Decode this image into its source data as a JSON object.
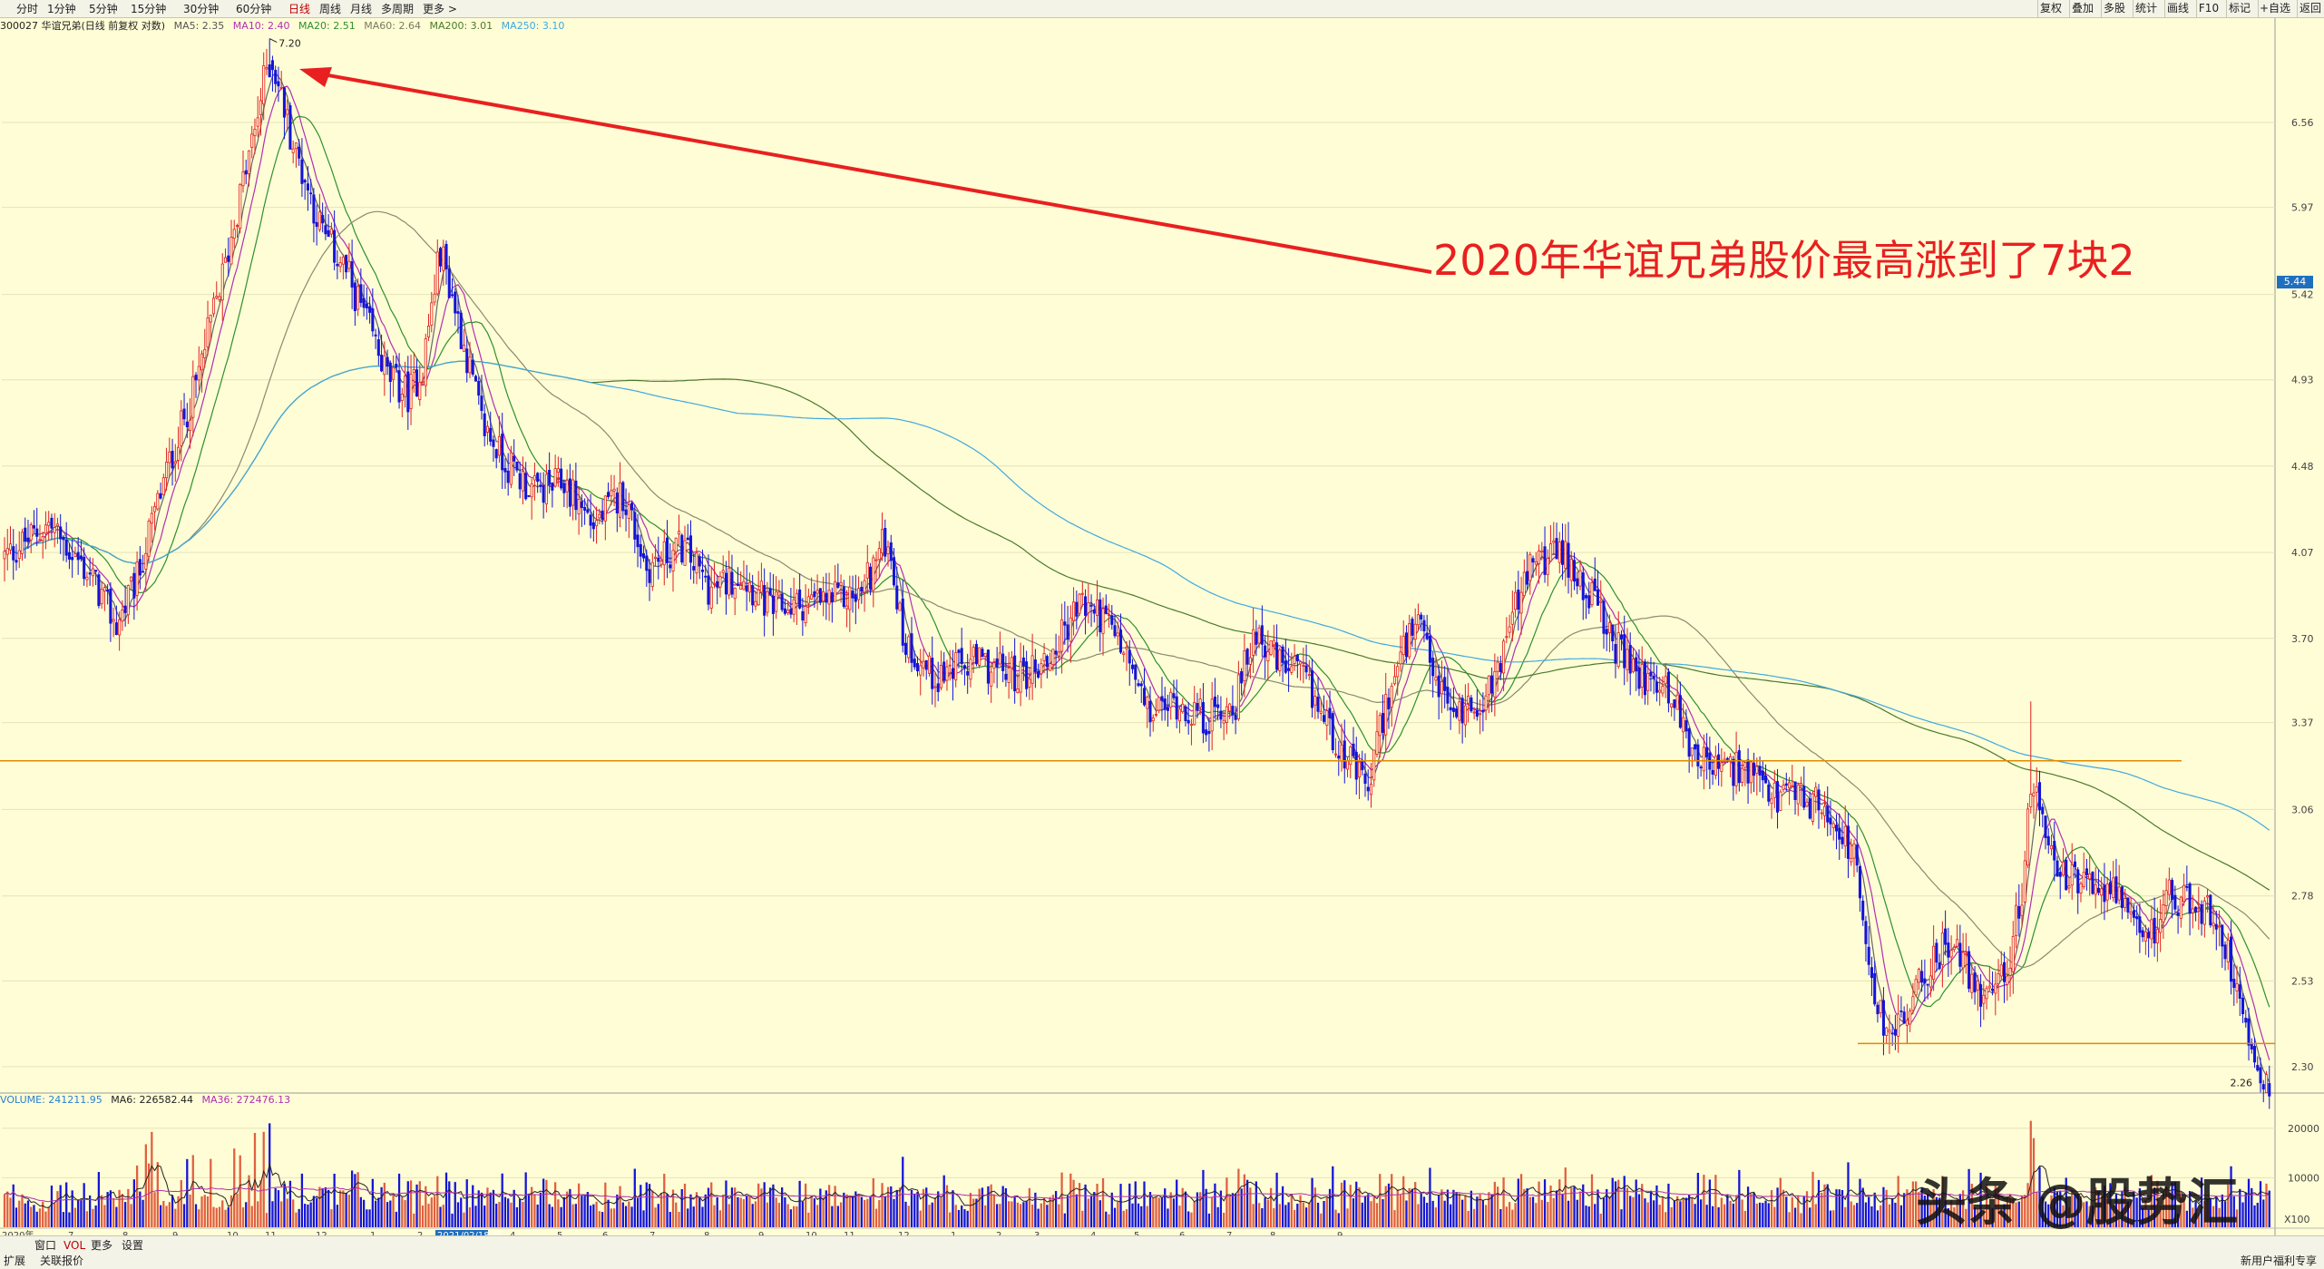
{
  "toolbar": {
    "left_items": [
      "分时",
      "1分钟",
      "5分钟",
      "15分钟",
      "30分钟",
      "60分钟",
      "日线",
      "周线",
      "月线",
      "多周期",
      "更多 >"
    ],
    "active": "日线",
    "right_items": [
      "复权",
      "叠加",
      "多股",
      "统计",
      "画线",
      "F10",
      "标记",
      "+自选",
      "返回"
    ]
  },
  "info": {
    "code_name": "300027 华谊兄弟(日线 前复权 对数)",
    "ma5": "MA5: 2.35",
    "ma10": "MA10: 2.40",
    "ma20": "MA20: 2.51",
    "ma60": "MA60: 2.64",
    "ma200": "MA200: 3.01",
    "ma250": "MA250: 3.10"
  },
  "volume_info": {
    "volume": "VOLUME: 241211.95",
    "ma6": "MA6: 226582.44",
    "ma36": "MA36: 272476.13"
  },
  "annotation": "2020年华谊兄弟股价最高涨到了7块2",
  "high_marker": "7.20",
  "low_marker": "2.26",
  "current_price": "5.44",
  "vol_x100": "X100",
  "bottom": {
    "tabs": [
      "窗口",
      "VOL",
      "更多",
      "设置"
    ],
    "row2": [
      "扩展",
      "关联报价"
    ],
    "right_note": "新用户福利专享",
    "date_highlight": "2021/02/18/四"
  },
  "watermark": "头条 @股势汇",
  "colors": {
    "up": "#e02020",
    "down": "#1414d8",
    "ma5": "#666666",
    "ma10": "#b030b0",
    "ma20": "#2f8f2f",
    "ma60": "#8a8a70",
    "ma200": "#4a7a2a",
    "ma250": "#40a8e0",
    "support_line": "#e08a00",
    "arrow": "#e82020"
  },
  "chart_data": {
    "type": "candlestick",
    "stock": "300027 华谊兄弟",
    "period": "日线",
    "scale": "log",
    "y_ticks": [
      6.56,
      5.97,
      5.42,
      4.93,
      4.48,
      4.07,
      3.7,
      3.37,
      3.06,
      2.78,
      2.53,
      2.3
    ],
    "x_labels": [
      "2020年",
      "7",
      "8",
      "9",
      "10",
      "11",
      "12",
      "1",
      "2",
      "2021/02/18/四",
      "4",
      "5",
      "6",
      "7",
      "8",
      "9",
      "10",
      "11",
      "12",
      "1",
      "2",
      "3",
      "4",
      "5",
      "6",
      "7",
      "8",
      "9"
    ],
    "max_point": 7.2,
    "min_point": 2.26,
    "support_levels": [
      3.23,
      2.36
    ],
    "price_path": [
      [
        0,
        4.05
      ],
      [
        15,
        4.2
      ],
      [
        30,
        3.95
      ],
      [
        38,
        3.75
      ],
      [
        45,
        3.95
      ],
      [
        55,
        4.45
      ],
      [
        65,
        4.9
      ],
      [
        75,
        5.6
      ],
      [
        85,
        6.5
      ],
      [
        90,
        7.1
      ],
      [
        98,
        6.4
      ],
      [
        108,
        5.8
      ],
      [
        115,
        5.6
      ],
      [
        122,
        5.3
      ],
      [
        130,
        4.95
      ],
      [
        137,
        4.85
      ],
      [
        142,
        5.0
      ],
      [
        148,
        5.7
      ],
      [
        155,
        5.2
      ],
      [
        162,
        4.7
      ],
      [
        170,
        4.5
      ],
      [
        180,
        4.35
      ],
      [
        190,
        4.4
      ],
      [
        200,
        4.2
      ],
      [
        210,
        4.35
      ],
      [
        218,
        4.0
      ],
      [
        230,
        4.1
      ],
      [
        240,
        3.9
      ],
      [
        250,
        3.98
      ],
      [
        260,
        3.82
      ],
      [
        275,
        3.85
      ],
      [
        290,
        3.88
      ],
      [
        300,
        4.15
      ],
      [
        305,
        3.7
      ],
      [
        315,
        3.55
      ],
      [
        330,
        3.6
      ],
      [
        345,
        3.55
      ],
      [
        355,
        3.62
      ],
      [
        365,
        3.85
      ],
      [
        372,
        3.8
      ],
      [
        380,
        3.65
      ],
      [
        388,
        3.4
      ],
      [
        398,
        3.45
      ],
      [
        408,
        3.38
      ],
      [
        418,
        3.45
      ],
      [
        425,
        3.75
      ],
      [
        432,
        3.6
      ],
      [
        440,
        3.55
      ],
      [
        450,
        3.35
      ],
      [
        458,
        3.2
      ],
      [
        463,
        3.12
      ],
      [
        468,
        3.4
      ],
      [
        475,
        3.65
      ],
      [
        480,
        3.75
      ],
      [
        485,
        3.55
      ],
      [
        492,
        3.4
      ],
      [
        500,
        3.45
      ],
      [
        505,
        3.5
      ],
      [
        512,
        3.8
      ],
      [
        520,
        4.05
      ],
      [
        530,
        4.05
      ],
      [
        538,
        3.9
      ],
      [
        545,
        3.7
      ],
      [
        555,
        3.55
      ],
      [
        565,
        3.5
      ],
      [
        572,
        3.3
      ],
      [
        580,
        3.2
      ],
      [
        590,
        3.2
      ],
      [
        600,
        3.1
      ],
      [
        610,
        3.1
      ],
      [
        620,
        3.05
      ],
      [
        628,
        2.9
      ],
      [
        632,
        2.6
      ],
      [
        638,
        2.4
      ],
      [
        645,
        2.42
      ],
      [
        652,
        2.55
      ],
      [
        660,
        2.65
      ],
      [
        670,
        2.5
      ],
      [
        680,
        2.55
      ],
      [
        685,
        2.8
      ],
      [
        688,
        3.15
      ],
      [
        695,
        2.9
      ],
      [
        705,
        2.8
      ],
      [
        715,
        2.82
      ],
      [
        722,
        2.68
      ],
      [
        728,
        2.65
      ],
      [
        735,
        2.78
      ],
      [
        745,
        2.75
      ],
      [
        752,
        2.7
      ],
      [
        760,
        2.45
      ],
      [
        765,
        2.32
      ],
      [
        768,
        2.26
      ]
    ],
    "ma_last_values": {
      "MA5": 2.35,
      "MA10": 2.4,
      "MA20": 2.51,
      "MA60": 2.64,
      "MA200": 3.01,
      "MA250": 3.1
    },
    "volume": {
      "latest": 241211.95,
      "ma6": 226582.44,
      "ma36": 272476.13,
      "y_ticks": [
        20000,
        10000
      ],
      "unit": "X100"
    }
  }
}
